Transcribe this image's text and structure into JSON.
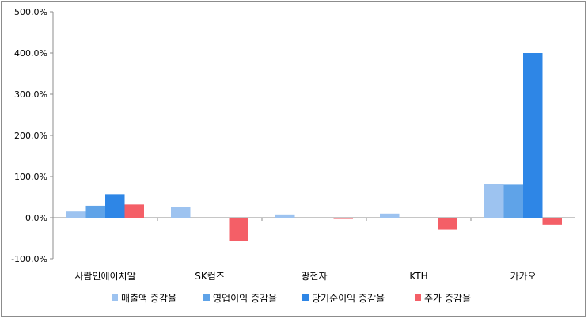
{
  "chart_data": {
    "type": "bar",
    "categories": [
      "사람인에이치알",
      "SK컴즈",
      "광전자",
      "KTH",
      "카카오"
    ],
    "series": [
      {
        "name": "매출액 증감율",
        "color": "#9dc3f0",
        "values": [
          15,
          25,
          8,
          10,
          82
        ]
      },
      {
        "name": "영업이익 증감율",
        "color": "#5fa3e8",
        "values": [
          29,
          0,
          0,
          0,
          80
        ]
      },
      {
        "name": "당기순이익 증감율",
        "color": "#2e86e6",
        "values": [
          57,
          0,
          0,
          0,
          400
        ]
      },
      {
        "name": "주가 증감율",
        "color": "#f45f67",
        "values": [
          32,
          -57,
          -3,
          -28,
          -17
        ]
      }
    ],
    "yticks": [
      "500.0%",
      "400.0%",
      "300.0%",
      "200.0%",
      "100.0%",
      "0.0%",
      "-100.0%"
    ],
    "ylim": [
      -100,
      500
    ],
    "legend_position": "bottom",
    "grid": false
  }
}
